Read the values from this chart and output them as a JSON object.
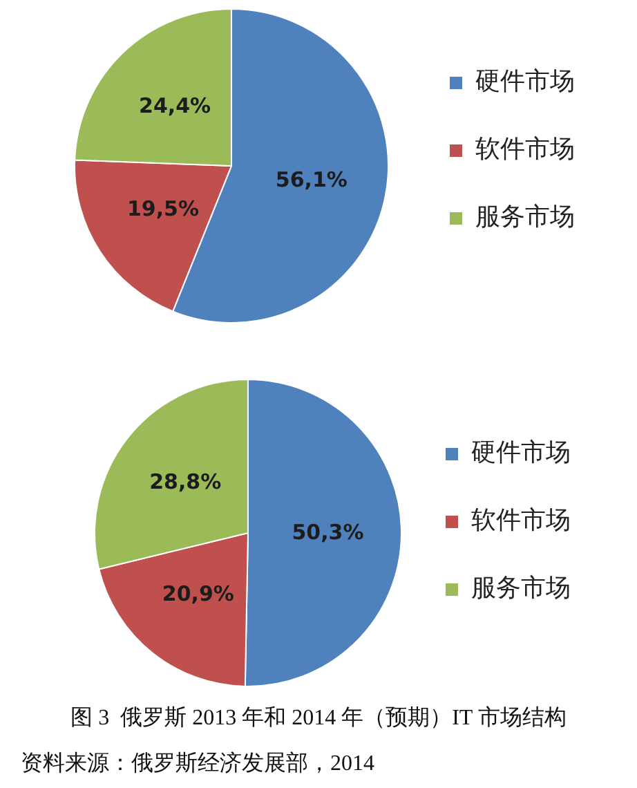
{
  "chart_data": [
    {
      "type": "pie",
      "categories": [
        "硬件市场",
        "软件市场",
        "服务市场"
      ],
      "values": [
        56.1,
        19.5,
        24.4
      ],
      "colors": [
        "#4f81bd",
        "#c0504d",
        "#9bbb59"
      ],
      "value_labels": [
        "56,1%",
        "19,5%",
        "24,4%"
      ],
      "legend": "right"
    },
    {
      "type": "pie",
      "categories": [
        "硬件市场",
        "软件市场",
        "服务市场"
      ],
      "values": [
        50.3,
        20.9,
        28.8
      ],
      "colors": [
        "#4f81bd",
        "#c0504d",
        "#9bbb59"
      ],
      "value_labels": [
        "50,3%",
        "20,9%",
        "28,8%"
      ],
      "legend": "right",
      "annotations": [
        "图 3  俄罗斯 2013 年和 2014 年（预期）IT 市场结构",
        "资料来源：俄罗斯经济发展部，2014"
      ]
    }
  ]
}
